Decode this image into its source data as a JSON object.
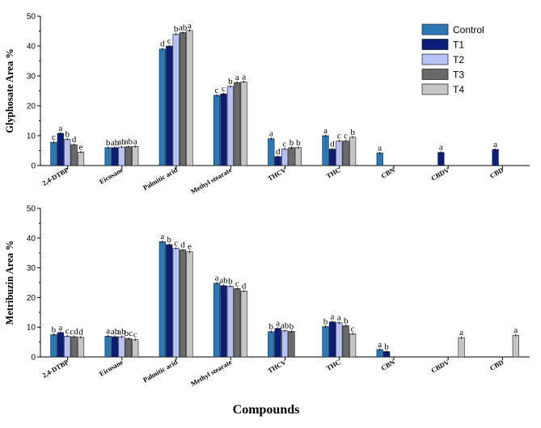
{
  "xlabel": "Compounds",
  "colors": {
    "Control": "#2a78b5",
    "T1": "#0b1e7a",
    "T2": "#b7c1f5",
    "T3": "#6a6a6a",
    "T4": "#c5c5c5"
  },
  "chart_data": [
    {
      "type": "bar",
      "ylabel": "Glyphosate Area %",
      "ylim": [
        0,
        50
      ],
      "yticks": [
        0,
        10,
        20,
        30,
        40,
        50
      ],
      "legend": "top-right",
      "categories": [
        "2,4-DTBP",
        "Eicosane",
        "Palmitic acid",
        "Methyl stearate",
        "THCV",
        "THC",
        "CBN",
        "CBDV",
        "CBD"
      ],
      "series": [
        {
          "name": "Control",
          "values": [
            7.8,
            6.0,
            39.0,
            23.5,
            9.0,
            10.0,
            4.2,
            0,
            0
          ]
        },
        {
          "name": "T1",
          "values": [
            10.8,
            6.0,
            40.0,
            24.0,
            3.0,
            5.5,
            0,
            4.4,
            5.4
          ]
        },
        {
          "name": "T2",
          "values": [
            8.8,
            6.2,
            44.0,
            26.5,
            5.5,
            8.2,
            0,
            0,
            0
          ]
        },
        {
          "name": "T3",
          "values": [
            7.0,
            6.3,
            44.5,
            27.8,
            6.0,
            8.2,
            0,
            0,
            0
          ]
        },
        {
          "name": "T4",
          "values": [
            4.5,
            6.4,
            45.2,
            28.0,
            6.0,
            9.5,
            0,
            0,
            0
          ]
        }
      ],
      "letters": [
        [
          "c",
          "a",
          "b",
          "d",
          "e"
        ],
        [
          "b",
          "ab",
          "ab",
          "ab",
          "a"
        ],
        [
          "d",
          "c",
          "b",
          "ab",
          "a"
        ],
        [
          "c",
          "c",
          "b",
          "a",
          "a"
        ],
        [
          "a",
          "d",
          "c",
          "b",
          "b"
        ],
        [
          "a",
          "d",
          "c",
          "c",
          "b"
        ],
        [
          "a",
          "",
          "",
          "",
          ""
        ],
        [
          "",
          "a",
          "",
          "",
          ""
        ],
        [
          "",
          "a",
          "",
          "",
          ""
        ]
      ]
    },
    {
      "type": "bar",
      "ylabel": "Metribuzin Area %",
      "ylim": [
        0,
        50
      ],
      "yticks": [
        0,
        10,
        20,
        30,
        40,
        50
      ],
      "categories": [
        "2,4-DTBP",
        "Eicosane",
        "Palmitic acid",
        "Methyl stearate",
        "THCV",
        "THC",
        "CBN",
        "CBDV",
        "CBD"
      ],
      "series": [
        {
          "name": "Control",
          "values": [
            7.5,
            7.0,
            38.8,
            24.8,
            8.5,
            10.2,
            2.5,
            0,
            0
          ]
        },
        {
          "name": "T1",
          "values": [
            8.2,
            6.8,
            37.8,
            24.0,
            9.6,
            11.8,
            1.8,
            0,
            0
          ]
        },
        {
          "name": "T2",
          "values": [
            7.0,
            6.8,
            36.5,
            23.8,
            8.8,
            11.5,
            0,
            0,
            0
          ]
        },
        {
          "name": "T3",
          "values": [
            6.8,
            6.2,
            36.0,
            23.0,
            8.6,
            10.5,
            0,
            0,
            0
          ]
        },
        {
          "name": "T4",
          "values": [
            6.6,
            5.8,
            35.4,
            22.2,
            0,
            7.8,
            0,
            6.5,
            7.3
          ]
        }
      ],
      "letters": [
        [
          "b",
          "a",
          "c",
          "cd",
          "d"
        ],
        [
          "a",
          "ab",
          "ab",
          "bc",
          "c"
        ],
        [
          "a",
          "b",
          "c",
          "d",
          "e"
        ],
        [
          "a",
          "ab",
          "b",
          "c",
          "d"
        ],
        [
          "b",
          "a",
          "ab",
          "b",
          ""
        ],
        [
          "b",
          "a",
          "a",
          "b",
          "c"
        ],
        [
          "a",
          "b",
          "",
          "",
          ""
        ],
        [
          "",
          "",
          "",
          "",
          "a"
        ],
        [
          "",
          "",
          "",
          "",
          "a"
        ]
      ]
    }
  ]
}
